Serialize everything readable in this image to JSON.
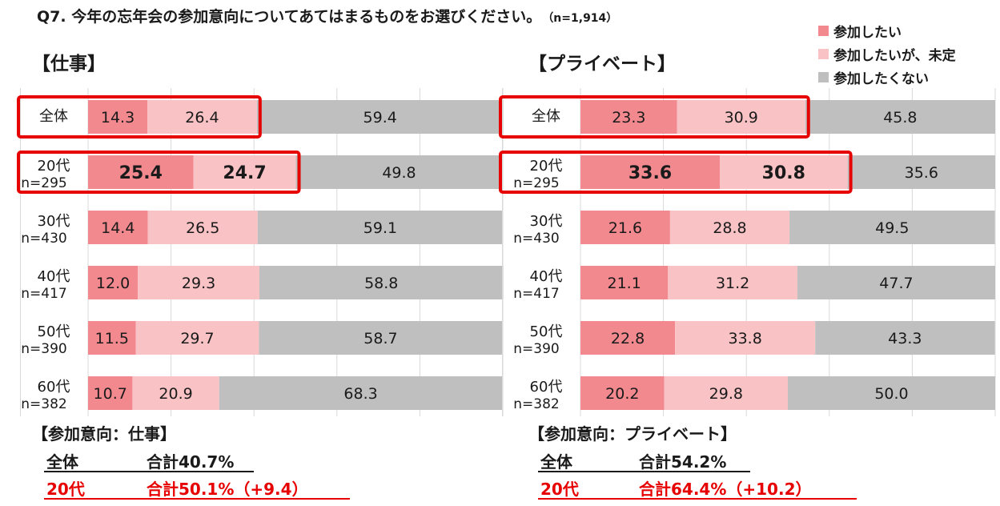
{
  "title": "Q7. 今年の忘年会の参加意向についてあてはまるものをお選びください。",
  "sample": "（n=1,914）",
  "legend": [
    {
      "label": "参加したい",
      "color": "#f1898f"
    },
    {
      "label": "参加したいが、未定",
      "color": "#f9c2c5"
    },
    {
      "label": "参加したくない",
      "color": "#bfbfbf"
    }
  ],
  "highlight_color": "#e60000",
  "chart_data": [
    {
      "type": "bar",
      "stacked": "horizontal-100",
      "title": "【仕事】",
      "categories": [
        "全体",
        "20代",
        "30代",
        "40代",
        "50代",
        "60代"
      ],
      "category_n": [
        "",
        "n=295",
        "n=430",
        "n=417",
        "n=390",
        "n=382"
      ],
      "series": [
        {
          "name": "参加したい",
          "values": [
            14.3,
            25.4,
            14.4,
            12.0,
            11.5,
            10.7
          ]
        },
        {
          "name": "参加したいが、未定",
          "values": [
            26.4,
            24.7,
            26.5,
            29.3,
            29.7,
            20.9
          ]
        },
        {
          "name": "参加したくない",
          "values": [
            59.4,
            49.8,
            59.1,
            58.8,
            58.7,
            68.3
          ]
        }
      ],
      "value_labels": [
        [
          "14.3",
          "26.4",
          "59.4"
        ],
        [
          "25.4",
          "24.7",
          "49.8"
        ],
        [
          "14.4",
          "26.5",
          "59.1"
        ],
        [
          "12.0",
          "29.3",
          "58.8"
        ],
        [
          "11.5",
          "29.7",
          "58.7"
        ],
        [
          "10.7",
          "20.9",
          "68.3"
        ]
      ],
      "highlighted_rows": [
        0,
        1
      ],
      "xlim": [
        0,
        100
      ]
    },
    {
      "type": "bar",
      "stacked": "horizontal-100",
      "title": "【プライベート】",
      "categories": [
        "全体",
        "20代",
        "30代",
        "40代",
        "50代",
        "60代"
      ],
      "category_n": [
        "",
        "n=295",
        "n=430",
        "n=417",
        "n=390",
        "n=382"
      ],
      "series": [
        {
          "name": "参加したい",
          "values": [
            23.3,
            33.6,
            21.6,
            21.1,
            22.8,
            20.2
          ]
        },
        {
          "name": "参加したいが、未定",
          "values": [
            30.9,
            30.8,
            28.8,
            31.2,
            33.8,
            29.8
          ]
        },
        {
          "name": "参加したくない",
          "values": [
            45.8,
            35.6,
            49.5,
            47.7,
            43.3,
            50.0
          ]
        }
      ],
      "value_labels": [
        [
          "23.3",
          "30.9",
          "45.8"
        ],
        [
          "33.6",
          "30.8",
          "35.6"
        ],
        [
          "21.6",
          "28.8",
          "49.5"
        ],
        [
          "21.1",
          "31.2",
          "47.7"
        ],
        [
          "22.8",
          "33.8",
          "43.3"
        ],
        [
          "20.2",
          "29.8",
          "50.0"
        ]
      ],
      "highlighted_rows": [
        0,
        1
      ],
      "xlim": [
        0,
        100
      ]
    }
  ],
  "summaries": [
    {
      "heading": "【参加意向：仕事】",
      "rows": [
        {
          "label": "全体",
          "value": "合計40.7%",
          "emphasis": false
        },
        {
          "label": "20代",
          "value": "合計50.1%（+9.4）",
          "emphasis": true
        }
      ]
    },
    {
      "heading": "【参加意向：プライベート】",
      "rows": [
        {
          "label": "全体",
          "value": "合計54.2%",
          "emphasis": false
        },
        {
          "label": "20代",
          "value": "合計64.4%（+10.2）",
          "emphasis": true
        }
      ]
    }
  ]
}
